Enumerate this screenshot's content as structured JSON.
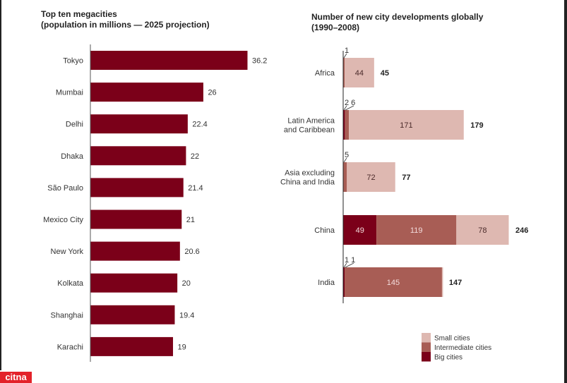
{
  "logo": "citna",
  "colors": {
    "big": "#7b0019",
    "intermediate": "#a85d55",
    "small": "#deb8b1",
    "frame": "#222222"
  },
  "chart_data": [
    {
      "type": "bar",
      "orientation": "horizontal",
      "title": "Top ten megacities\n(population in millions — 2025 projection)",
      "title_lines": [
        "Top ten megacities",
        "(population in millions — 2025 projection)"
      ],
      "categories": [
        "Tokyo",
        "Mumbai",
        "Delhi",
        "Dhaka",
        "São Paulo",
        "Mexico City",
        "New York",
        "Kolkata",
        "Shanghai",
        "Karachi"
      ],
      "values": [
        36.2,
        26,
        22.4,
        22,
        21.4,
        21,
        20.6,
        20,
        19.4,
        19
      ],
      "value_labels": [
        "36.2",
        "26",
        "22.4",
        "22",
        "21.4",
        "21",
        "20.6",
        "20",
        "19.4",
        "19"
      ],
      "xlabel": "",
      "ylabel": "",
      "xlim": [
        0,
        40
      ],
      "grid": false,
      "legend": "none"
    },
    {
      "type": "bar",
      "orientation": "horizontal",
      "stacked": true,
      "title": "Number of new city developments globally\n(1990–2008)",
      "title_lines": [
        "Number of new city developments globally",
        "(1990–2008)"
      ],
      "categories": [
        "Africa",
        "Latin America\nand Caribbean",
        "Asia excluding\nChina and India",
        "China",
        "India"
      ],
      "category_lines": [
        [
          "Africa"
        ],
        [
          "Latin America",
          "and Caribbean"
        ],
        [
          "Asia excluding",
          "China and India"
        ],
        [
          "China"
        ],
        [
          "India"
        ]
      ],
      "series": [
        {
          "name": "Big cities",
          "key": "big",
          "values": [
            0,
            2,
            0,
            49,
            1
          ]
        },
        {
          "name": "Intermediate cities",
          "key": "intermediate",
          "values": [
            1,
            6,
            5,
            119,
            145
          ]
        },
        {
          "name": "Small cities",
          "key": "small",
          "values": [
            44,
            171,
            72,
            78,
            1
          ]
        }
      ],
      "callouts": [
        "1",
        "2 6",
        "5",
        "",
        "1 1"
      ],
      "totals": [
        45,
        179,
        77,
        246,
        147
      ],
      "xlim": [
        0,
        260
      ],
      "grid": false,
      "legend": "bottom-right",
      "legend_entries": [
        "Small cities",
        "Intermediate cities",
        "Big cities"
      ]
    }
  ]
}
